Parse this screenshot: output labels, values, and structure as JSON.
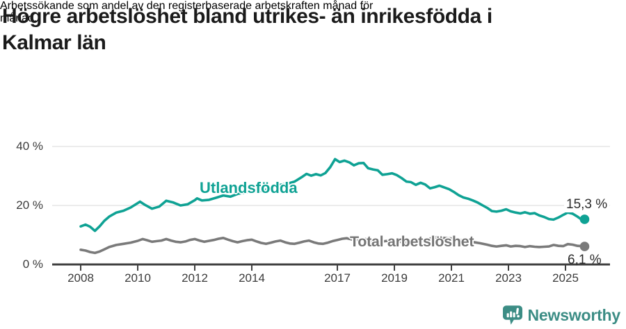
{
  "header": {
    "title_lines": [
      "Högre arbetslöshet bland utrikes- än inrikesfödda i",
      "Kalmar län"
    ],
    "subtitle_lines": [
      "Arbetssökande som andel av den registerbaserade arbetskraften månad för",
      "månad."
    ]
  },
  "chart_data": {
    "type": "line",
    "title": "Högre arbetslöshet bland utrikes- än inrikesfödda i Kalmar län",
    "subtitle": "Arbetssökande som andel av den registerbaserade arbetskraften månad för månad.",
    "unit": "%",
    "grid": "horizontal",
    "x_axis": {
      "ticks": [
        2008,
        2010,
        2012,
        2014,
        2017,
        2019,
        2021,
        2023,
        2025
      ],
      "tick_labels": [
        "2008",
        "2010",
        "2012",
        "2014",
        "2017",
        "2019",
        "2021",
        "2023",
        "2025"
      ],
      "range": [
        2007.9,
        2025.8
      ]
    },
    "y_axis": {
      "ticks": [
        0,
        20,
        40
      ],
      "tick_labels": [
        "0 %",
        "20 %",
        "40 %"
      ],
      "range": [
        0,
        43
      ]
    },
    "series": [
      {
        "name": "Utlandsfödda",
        "color": "#0fa294",
        "end_label": "15,3 %",
        "end_value": 15.3,
        "x": [
          2008.0,
          2008.17,
          2008.33,
          2008.5,
          2008.67,
          2008.83,
          2009.0,
          2009.25,
          2009.5,
          2009.75,
          2010.0,
          2010.08,
          2010.25,
          2010.5,
          2010.75,
          2011.0,
          2011.25,
          2011.5,
          2011.75,
          2012.0,
          2012.08,
          2012.25,
          2012.5,
          2012.75,
          2013.0,
          2013.25,
          2013.5,
          2013.75,
          2014.0,
          2014.25,
          2014.5,
          2014.75,
          2015.0,
          2015.25,
          2015.5,
          2015.75,
          2015.92,
          2016.08,
          2016.25,
          2016.42,
          2016.58,
          2016.75,
          2016.92,
          2017.08,
          2017.25,
          2017.42,
          2017.58,
          2017.75,
          2017.92,
          2018.08,
          2018.25,
          2018.42,
          2018.58,
          2018.75,
          2018.92,
          2019.08,
          2019.25,
          2019.42,
          2019.58,
          2019.75,
          2019.92,
          2020.08,
          2020.25,
          2020.42,
          2020.58,
          2020.75,
          2020.92,
          2021.08,
          2021.25,
          2021.42,
          2021.58,
          2021.75,
          2021.92,
          2022.08,
          2022.25,
          2022.42,
          2022.58,
          2022.75,
          2022.92,
          2023.08,
          2023.25,
          2023.42,
          2023.58,
          2023.75,
          2023.92,
          2024.08,
          2024.25,
          2024.42,
          2024.58,
          2024.75,
          2024.92,
          2025.08,
          2025.25,
          2025.42,
          2025.58,
          2025.67
        ],
        "y": [
          12.9,
          13.5,
          12.8,
          11.4,
          13.0,
          14.8,
          16.2,
          17.6,
          18.2,
          19.3,
          20.8,
          21.3,
          20.2,
          18.9,
          19.6,
          21.6,
          21.0,
          20.0,
          20.4,
          21.8,
          22.4,
          21.7,
          21.9,
          22.6,
          23.4,
          23.0,
          23.9,
          24.4,
          25.0,
          24.7,
          25.4,
          26.4,
          27.0,
          27.4,
          28.1,
          29.6,
          30.7,
          30.1,
          30.6,
          30.2,
          31.0,
          33.0,
          35.7,
          34.7,
          35.2,
          34.6,
          33.6,
          34.3,
          34.4,
          32.6,
          32.2,
          31.9,
          30.4,
          30.6,
          30.9,
          30.3,
          29.3,
          28.1,
          27.9,
          27.0,
          27.7,
          27.1,
          25.8,
          26.2,
          26.7,
          26.1,
          25.5,
          24.6,
          23.5,
          22.7,
          22.3,
          21.7,
          21.0,
          20.1,
          19.2,
          18.1,
          17.9,
          18.2,
          18.7,
          18.0,
          17.6,
          17.3,
          17.7,
          17.2,
          17.4,
          16.6,
          16.1,
          15.4,
          15.2,
          15.9,
          16.8,
          17.6,
          17.2,
          16.2,
          15.1,
          15.3
        ]
      },
      {
        "name": "Total arbetslöshet",
        "color": "#7a7a7a",
        "end_label": "6,1 %",
        "end_value": 6.1,
        "x": [
          2008.0,
          2008.17,
          2008.33,
          2008.5,
          2008.67,
          2008.83,
          2009.0,
          2009.25,
          2009.5,
          2009.75,
          2010.0,
          2010.17,
          2010.33,
          2010.5,
          2010.67,
          2010.83,
          2011.0,
          2011.17,
          2011.33,
          2011.5,
          2011.67,
          2011.83,
          2012.0,
          2012.17,
          2012.33,
          2012.5,
          2012.67,
          2012.83,
          2013.0,
          2013.17,
          2013.33,
          2013.5,
          2013.67,
          2013.83,
          2014.0,
          2014.17,
          2014.33,
          2014.5,
          2014.67,
          2014.83,
          2015.0,
          2015.17,
          2015.33,
          2015.5,
          2015.67,
          2015.83,
          2016.0,
          2016.17,
          2016.33,
          2016.5,
          2016.67,
          2016.83,
          2017.0,
          2017.17,
          2017.33,
          2017.5,
          2017.67,
          2017.83,
          2018.0,
          2018.25,
          2018.5,
          2018.75,
          2019.0,
          2019.25,
          2019.5,
          2019.75,
          2020.0,
          2020.25,
          2020.5,
          2020.75,
          2021.0,
          2021.25,
          2021.5,
          2021.75,
          2022.0,
          2022.25,
          2022.42,
          2022.58,
          2022.75,
          2022.92,
          2023.08,
          2023.25,
          2023.42,
          2023.58,
          2023.75,
          2023.92,
          2024.08,
          2024.25,
          2024.42,
          2024.58,
          2024.75,
          2024.92,
          2025.08,
          2025.25,
          2025.42,
          2025.58,
          2025.67
        ],
        "y": [
          5.0,
          4.7,
          4.2,
          3.9,
          4.4,
          5.1,
          5.9,
          6.6,
          7.0,
          7.4,
          8.0,
          8.6,
          8.2,
          7.7,
          7.9,
          8.1,
          8.6,
          8.1,
          7.7,
          7.5,
          7.8,
          8.3,
          8.6,
          8.1,
          7.7,
          8.0,
          8.3,
          8.7,
          9.0,
          8.4,
          7.9,
          7.5,
          7.9,
          8.2,
          8.4,
          7.8,
          7.3,
          7.0,
          7.4,
          7.8,
          8.1,
          7.5,
          7.1,
          7.0,
          7.4,
          7.8,
          8.1,
          7.5,
          7.1,
          7.0,
          7.4,
          7.9,
          8.3,
          8.7,
          8.9,
          8.5,
          8.2,
          8.4,
          8.6,
          8.0,
          7.7,
          8.0,
          8.0,
          7.6,
          7.4,
          7.6,
          7.9,
          8.8,
          9.3,
          9.0,
          8.8,
          8.4,
          8.0,
          7.6,
          7.2,
          6.7,
          6.3,
          6.1,
          6.3,
          6.5,
          6.1,
          6.3,
          6.2,
          5.9,
          6.2,
          6.0,
          5.9,
          6.0,
          6.1,
          6.6,
          6.3,
          6.2,
          6.9,
          6.7,
          6.3,
          6.2,
          6.1
        ]
      }
    ],
    "legend_position": "inline-labels"
  },
  "annotations": {
    "teal_series_label": "Utlandsfödda",
    "gray_series_label": "Total arbetslöshet",
    "teal_end_label": "15,3 %",
    "gray_end_label": "6,1 %"
  },
  "footer": {
    "brand": "Newsworthy",
    "logo_icon": "newsworthy-chart-bubble-icon"
  },
  "colors": {
    "accent_teal": "#0fa294",
    "line_gray": "#7a7a7a",
    "grid": "#e0e0e0",
    "axis": "#3f3f3f",
    "text_dark": "#1b1b1b",
    "brand_teal": "#3c8d85"
  }
}
